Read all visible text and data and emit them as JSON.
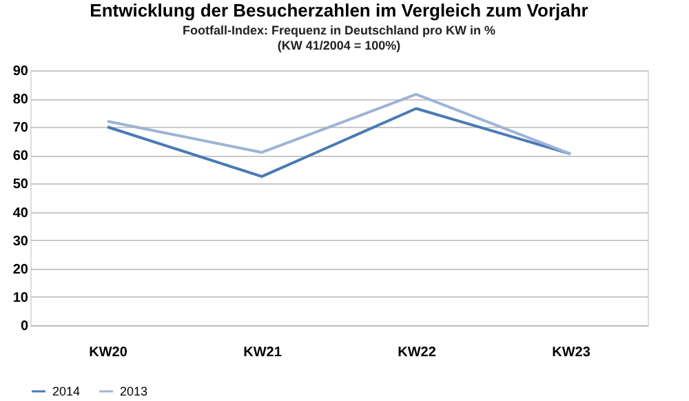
{
  "chart_data": {
    "type": "line",
    "title": "Entwicklung der Besucherzahlen im Vergleich zum Vorjahr",
    "subtitle": [
      "Footfall-Index: Frequenz in Deutschland pro KW in %",
      "(KW 41/2004 = 100%)"
    ],
    "categories": [
      "KW20",
      "KW21",
      "KW22",
      "KW23"
    ],
    "series": [
      {
        "name": "2014",
        "color": "#4a7ab5",
        "values": [
          70,
          52.5,
          76.5,
          60.5
        ]
      },
      {
        "name": "2013",
        "color": "#9db3d6",
        "values": [
          72,
          61,
          81.5,
          60.5
        ]
      }
    ],
    "ylim": [
      0,
      90
    ],
    "yticks": [
      0,
      10,
      20,
      30,
      40,
      50,
      60,
      70,
      80,
      90
    ],
    "grid": "y",
    "legend": "bottom",
    "marker": "none",
    "line_style": "solid"
  }
}
